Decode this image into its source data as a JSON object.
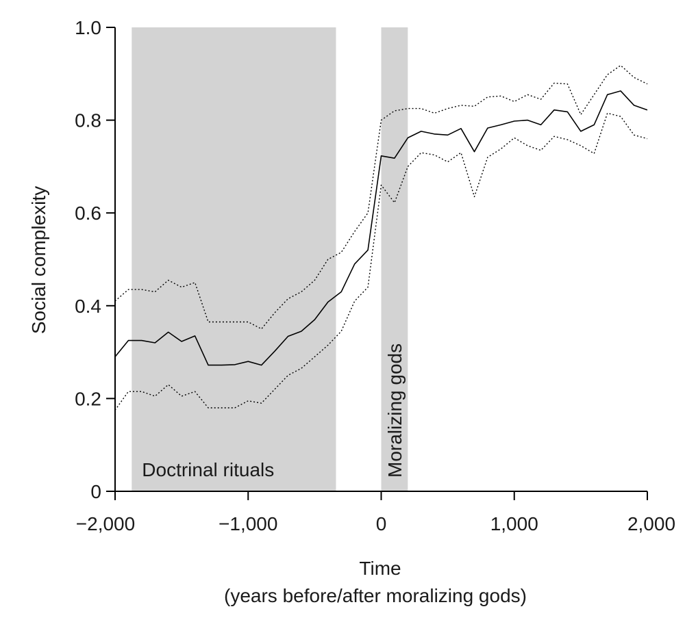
{
  "chart_data": {
    "type": "line",
    "xlabel": "Time",
    "xlabel_sub": "(years before/after moralizing gods)",
    "ylabel": "Social complexity",
    "xlim": [
      -2000,
      2000
    ],
    "ylim": [
      0,
      1
    ],
    "x_ticks": [
      -2000,
      -1000,
      0,
      1000,
      2000
    ],
    "x_tick_labels": [
      "−2,000",
      "−1,000",
      "0",
      "1,000",
      "2,000"
    ],
    "y_ticks": [
      0,
      0.2,
      0.4,
      0.6,
      0.8,
      1.0
    ],
    "y_tick_labels": [
      "0",
      "0.2",
      "0.4",
      "0.6",
      "0.8",
      "1.0"
    ],
    "grid": false,
    "bands": [
      {
        "name": "doctrinal-rituals",
        "label": "Doctrinal rituals",
        "x_start": -1875,
        "x_end": -340,
        "color": "#d3d3d3",
        "label_orientation": "horizontal"
      },
      {
        "name": "moralizing-gods",
        "label": "Moralizing gods",
        "x_start": 0,
        "x_end": 200,
        "color": "#d3d3d3",
        "label_orientation": "vertical"
      }
    ],
    "x": [
      -2000,
      -1900,
      -1800,
      -1700,
      -1600,
      -1500,
      -1400,
      -1300,
      -1200,
      -1100,
      -1000,
      -900,
      -800,
      -700,
      -600,
      -500,
      -400,
      -300,
      -200,
      -100,
      0,
      100,
      200,
      300,
      400,
      500,
      600,
      700,
      800,
      900,
      1000,
      1100,
      1200,
      1300,
      1400,
      1500,
      1600,
      1700,
      1800,
      1900,
      2000
    ],
    "series": [
      {
        "key": "mean",
        "style": "solid",
        "values": [
          0.29,
          0.325,
          0.325,
          0.32,
          0.343,
          0.323,
          0.335,
          0.272,
          0.272,
          0.273,
          0.28,
          0.272,
          0.302,
          0.334,
          0.345,
          0.37,
          0.408,
          0.43,
          0.49,
          0.52,
          0.723,
          0.718,
          0.762,
          0.776,
          0.77,
          0.768,
          0.782,
          0.732,
          0.783,
          0.79,
          0.798,
          0.8,
          0.79,
          0.822,
          0.818,
          0.776,
          0.79,
          0.855,
          0.863,
          0.832,
          0.822
        ]
      },
      {
        "key": "upper",
        "style": "dotted",
        "values": [
          0.41,
          0.435,
          0.435,
          0.43,
          0.455,
          0.44,
          0.45,
          0.365,
          0.365,
          0.365,
          0.365,
          0.35,
          0.385,
          0.415,
          0.43,
          0.455,
          0.5,
          0.515,
          0.56,
          0.6,
          0.8,
          0.82,
          0.825,
          0.825,
          0.815,
          0.825,
          0.832,
          0.83,
          0.85,
          0.852,
          0.84,
          0.855,
          0.845,
          0.88,
          0.878,
          0.812,
          0.855,
          0.898,
          0.918,
          0.892,
          0.878
        ]
      },
      {
        "key": "lower",
        "style": "dotted",
        "values": [
          0.175,
          0.215,
          0.215,
          0.205,
          0.23,
          0.205,
          0.215,
          0.18,
          0.18,
          0.18,
          0.195,
          0.19,
          0.22,
          0.25,
          0.265,
          0.29,
          0.315,
          0.345,
          0.41,
          0.44,
          0.66,
          0.622,
          0.7,
          0.73,
          0.725,
          0.71,
          0.73,
          0.635,
          0.72,
          0.738,
          0.762,
          0.745,
          0.735,
          0.765,
          0.758,
          0.745,
          0.728,
          0.815,
          0.808,
          0.768,
          0.76
        ]
      }
    ],
    "colors": {
      "band": "#d3d3d3",
      "line": "#000000",
      "axis": "#000000"
    }
  }
}
